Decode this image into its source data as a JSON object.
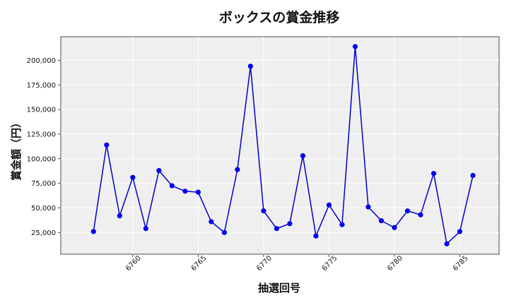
{
  "chart_data": {
    "type": "line",
    "title": "ボックスの賞金推移",
    "xlabel": "抽選回号",
    "ylabel": "賞金額（円）",
    "x": [
      6757,
      6758,
      6759,
      6760,
      6761,
      6762,
      6763,
      6764,
      6765,
      6766,
      6767,
      6768,
      6769,
      6770,
      6771,
      6772,
      6773,
      6774,
      6775,
      6776,
      6777,
      6778,
      6779,
      6780,
      6781,
      6782,
      6783,
      6784,
      6785,
      6786
    ],
    "series": [
      {
        "values": [
          26000,
          114000,
          42000,
          81000,
          29000,
          88000,
          72500,
          67000,
          66000,
          36000,
          25000,
          89000,
          194000,
          47000,
          29000,
          34000,
          103000,
          21500,
          53000,
          33000,
          214000,
          51000,
          37000,
          30000,
          47000,
          43000,
          85000,
          13500,
          26000,
          83000
        ],
        "color": "#0000cc"
      }
    ],
    "xlim": [
      6754.5,
      6788.0
    ],
    "ylim": [
      3000,
      224000
    ],
    "xticks": [
      6760,
      6765,
      6770,
      6775,
      6780,
      6785
    ],
    "yticks": [
      25000,
      50000,
      75000,
      100000,
      125000,
      150000,
      175000,
      200000
    ],
    "ytick_labels": [
      "25,000",
      "50,000",
      "75,000",
      "100,000",
      "125,000",
      "150,000",
      "175,000",
      "200,000"
    ],
    "grid": true,
    "background_color": "#efefef",
    "line_color": "#0000cc",
    "marker_color": "#0000ee"
  }
}
